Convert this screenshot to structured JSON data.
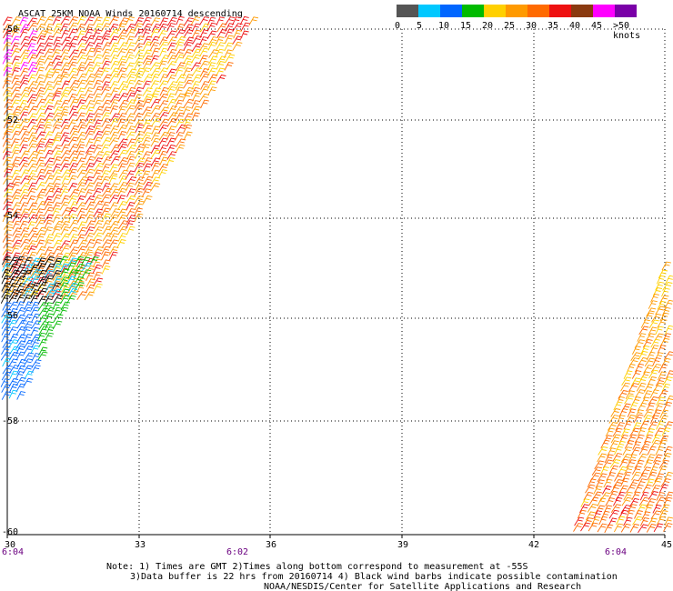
{
  "title": "ASCAT 25KM NOAA Winds 20160714 descending",
  "legend": {
    "labels": [
      "0",
      "5",
      "10",
      "15",
      "20",
      "25",
      "30",
      "35",
      "40",
      "45",
      ">50 knots"
    ],
    "colors": [
      "#555555",
      "#00c8ff",
      "#0066ff",
      "#00bb00",
      "#ffd000",
      "#ff9a00",
      "#ff6a00",
      "#ee1111",
      "#8a3a10",
      "#ff00ff",
      "#7a00a8"
    ]
  },
  "lat_labels": [
    "-50",
    "-52",
    "-54",
    "-56",
    "-58",
    "-60"
  ],
  "lon_labels": [
    "30",
    "33",
    "36",
    "39",
    "42",
    "45"
  ],
  "times": [
    "6:04",
    "6:02",
    "6:04"
  ],
  "notes": {
    "line1": "Note: 1) Times are GMT 2)Times along bottom correspond to measurement at -55S",
    "line2": "3)Data buffer is 22 hrs from 20160714 4) Black wind barbs indicate possible contamination",
    "line3": "NOAA/NESDIS/Center for Satellite Applications and Research"
  },
  "map": {
    "lat_range": [
      -60,
      -50
    ],
    "lon_range": [
      30,
      45
    ],
    "grid": "dotted"
  }
}
